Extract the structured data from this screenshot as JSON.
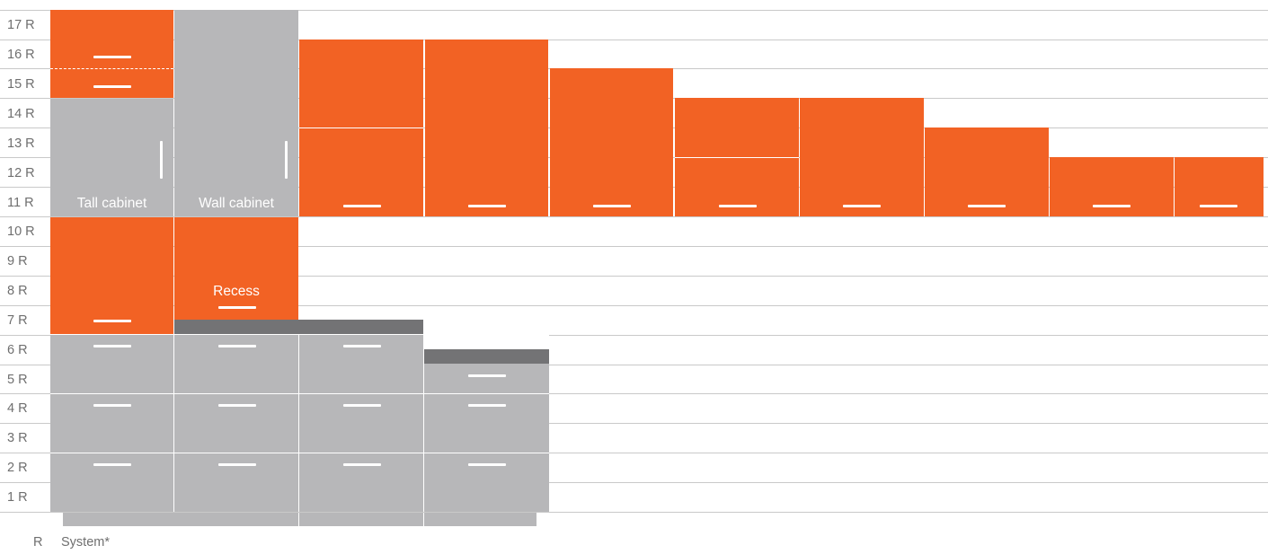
{
  "row_labels": [
    "17 R",
    "16 R",
    "15 R",
    "14 R",
    "13 R",
    "12 R",
    "11 R",
    "10 R",
    "9 R",
    "8 R",
    "7 R",
    "6 R",
    "5 R",
    "4 R",
    "3 R",
    "2 R",
    "1 R"
  ],
  "captions": {
    "tall_cabinet": "Tall cabinet",
    "wall_cabinet": "Wall cabinet",
    "recess": "Recess"
  },
  "legend": {
    "symbol": "R",
    "text": "System*"
  },
  "colors": {
    "orange": "#f26224",
    "gray": "#b7b7b9",
    "dark_gray": "#737375",
    "grid": "#c9c9c9",
    "label": "#6f6f6f"
  }
}
